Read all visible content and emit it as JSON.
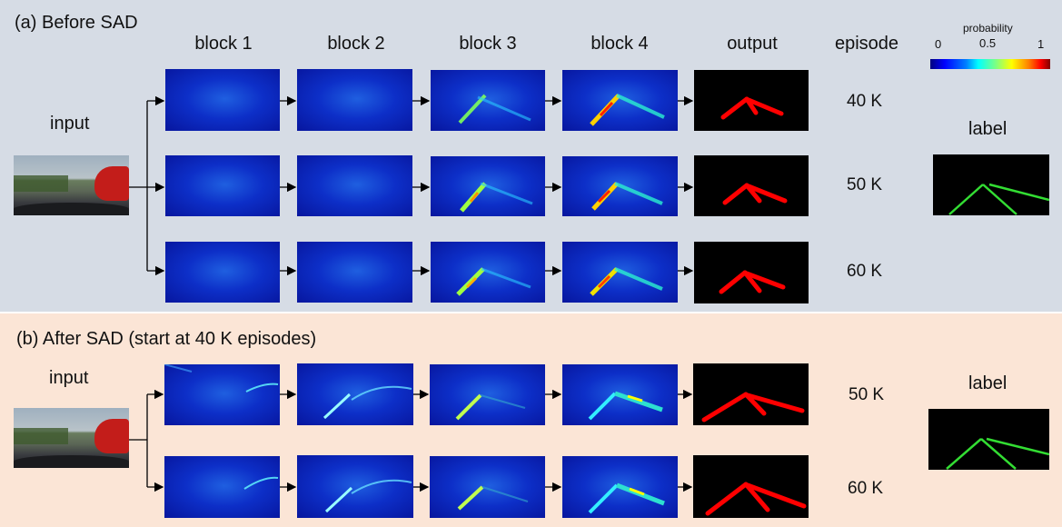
{
  "panel_a": {
    "title": "(a) Before SAD",
    "headers": [
      "block 1",
      "block 2",
      "block 3",
      "block 4",
      "output",
      "episode"
    ],
    "input_label": "input",
    "label_label": "label",
    "episodes": [
      "40 K",
      "50 K",
      "60 K"
    ]
  },
  "panel_b": {
    "title": "(b) After SAD (start at 40 K episodes)",
    "input_label": "input",
    "label_label": "label",
    "episodes": [
      "50 K",
      "60 K"
    ]
  },
  "colorbar": {
    "title": "probability",
    "ticks": [
      "0",
      "0.5",
      "1"
    ],
    "colormap": "jet"
  },
  "colors": {
    "panel_a_bg": "#d6dce5",
    "panel_b_bg": "#fbe5d6",
    "lane_prediction": "#ff0000",
    "lane_label": "#33dd33"
  }
}
